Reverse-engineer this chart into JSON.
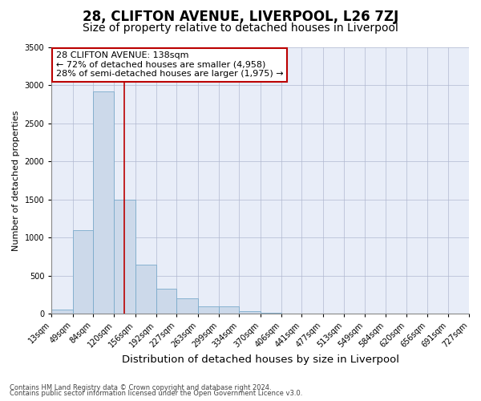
{
  "title": "28, CLIFTON AVENUE, LIVERPOOL, L26 7ZJ",
  "subtitle": "Size of property relative to detached houses in Liverpool",
  "xlabel": "Distribution of detached houses by size in Liverpool",
  "ylabel": "Number of detached properties",
  "footnote1": "Contains HM Land Registry data © Crown copyright and database right 2024.",
  "footnote2": "Contains public sector information licensed under the Open Government Licence v3.0.",
  "annotation_line1": "28 CLIFTON AVENUE: 138sqm",
  "annotation_line2": "← 72% of detached houses are smaller (4,958)",
  "annotation_line3": "28% of semi-detached houses are larger (1,975) →",
  "bar_color": "#ccd9ea",
  "bar_edge_color": "#7aaacb",
  "bar_edge_width": 0.6,
  "property_line_color": "#bb0000",
  "property_line_x": 138,
  "annotation_box_edgecolor": "#bb0000",
  "bins": [
    13,
    49,
    84,
    120,
    156,
    192,
    227,
    263,
    299,
    334,
    370,
    406,
    441,
    477,
    513,
    549,
    584,
    620,
    656,
    691,
    727
  ],
  "counts": [
    50,
    1100,
    2920,
    1500,
    640,
    330,
    200,
    90,
    90,
    30,
    12,
    5,
    3,
    2,
    2,
    1,
    1,
    1,
    1,
    1
  ],
  "ylim": [
    0,
    3500
  ],
  "yticks": [
    0,
    500,
    1000,
    1500,
    2000,
    2500,
    3000,
    3500
  ],
  "background_color": "#e8edf8",
  "grid_color": "#b0b8d0",
  "title_fontsize": 12,
  "subtitle_fontsize": 10,
  "ylabel_fontsize": 8,
  "xlabel_fontsize": 9.5,
  "tick_fontsize": 7,
  "annotation_fontsize": 8,
  "footnote_fontsize": 6
}
